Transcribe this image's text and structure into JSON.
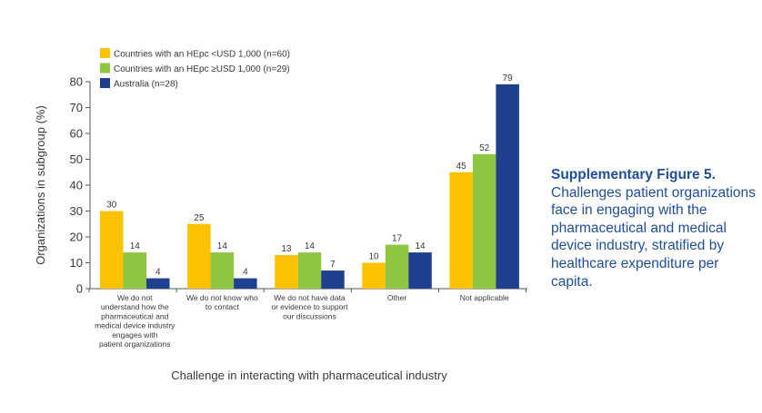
{
  "chart_data": {
    "type": "bar",
    "ylabel": "Organizations in subgroup (%)",
    "xlabel": "Challenge in interacting with pharmaceutical industry",
    "ylim": [
      0,
      80
    ],
    "yticks": [
      0,
      10,
      20,
      30,
      40,
      50,
      60,
      70,
      80
    ],
    "grid": false,
    "legend_position": "top-left",
    "categories": [
      [
        "We do not",
        "understand how the",
        "pharmaceutical and",
        "medical device industry",
        "engages with",
        "patient organizations"
      ],
      [
        "We do not know who",
        "to contact"
      ],
      [
        "We do not have data",
        "or evidence to support",
        "our discussions"
      ],
      [
        "Other"
      ],
      [
        "Not applicable"
      ]
    ],
    "series": [
      {
        "name": "Countries with an HEpc <USD 1,000 (n=60)",
        "color": "#fcc200",
        "values": [
          30,
          25,
          13,
          10,
          45
        ]
      },
      {
        "name": "Countries with an HEpc ≥USD 1,000 (n=29)",
        "color": "#8dc63f",
        "values": [
          14,
          14,
          14,
          17,
          52
        ]
      },
      {
        "name": "Australia (n=28)",
        "color": "#1f3f8f",
        "values": [
          4,
          4,
          7,
          14,
          79
        ]
      }
    ]
  },
  "caption": {
    "title": "Supplementary Figure 5.",
    "text": "Challenges patient organizations face in engaging with the pharmaceutical and medical device industry, stratified by healthcare expenditure per capita."
  }
}
